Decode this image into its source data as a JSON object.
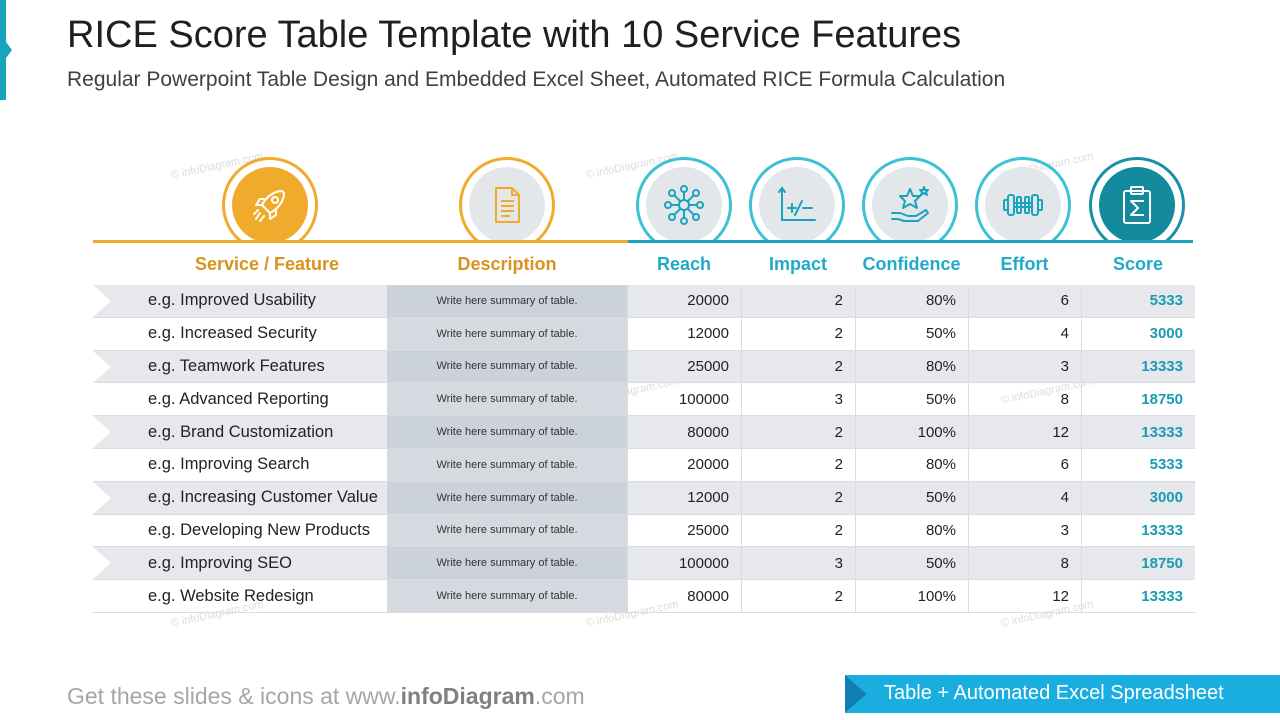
{
  "header": {
    "title": "RICE Score Table Template with 10 Service Features",
    "subtitle": "Regular Powerpoint Table Design and Embedded Excel Sheet, Automated RICE Formula Calculation"
  },
  "watermark": "© infoDiagram.com",
  "columns": {
    "feature": "Service / Feature",
    "description": "Description",
    "reach": "Reach",
    "impact": "Impact",
    "confidence": "Confidence",
    "effort": "Effort",
    "score": "Score"
  },
  "icons": {
    "feature": "rocket-icon",
    "description": "document-icon",
    "reach": "network-icon",
    "impact": "graph-plus-minus-icon",
    "confidence": "hand-star-icon",
    "effort": "dumbbell-icon",
    "score": "clipboard-sigma-icon"
  },
  "colors": {
    "orange": "#f1ab2c",
    "teal": "#1aa3bd",
    "score_text": "#1a9bb5",
    "banner": "#1aaee0"
  },
  "rows": [
    {
      "feature": "e.g. Improved Usability",
      "description": "Write here summary of table.",
      "reach": "20000",
      "impact": "2",
      "confidence": "80%",
      "effort": "6",
      "score": "5333"
    },
    {
      "feature": "e.g. Increased Security",
      "description": "Write here summary of table.",
      "reach": "12000",
      "impact": "2",
      "confidence": "50%",
      "effort": "4",
      "score": "3000"
    },
    {
      "feature": "e.g. Teamwork Features",
      "description": "Write here summary of table.",
      "reach": "25000",
      "impact": "2",
      "confidence": "80%",
      "effort": "3",
      "score": "13333"
    },
    {
      "feature": "e.g. Advanced Reporting",
      "description": "Write here summary of table.",
      "reach": "100000",
      "impact": "3",
      "confidence": "50%",
      "effort": "8",
      "score": "18750"
    },
    {
      "feature": "e.g. Brand Customization",
      "description": "Write here summary of table.",
      "reach": "80000",
      "impact": "2",
      "confidence": "100%",
      "effort": "12",
      "score": "13333"
    },
    {
      "feature": "e.g. Improving Search",
      "description": "Write here summary of table.",
      "reach": "20000",
      "impact": "2",
      "confidence": "80%",
      "effort": "6",
      "score": "5333"
    },
    {
      "feature": "e.g. Increasing Customer Value",
      "description": "Write here summary of table.",
      "reach": "12000",
      "impact": "2",
      "confidence": "50%",
      "effort": "4",
      "score": "3000"
    },
    {
      "feature": "e.g. Developing New Products",
      "description": "Write here summary of table.",
      "reach": "25000",
      "impact": "2",
      "confidence": "80%",
      "effort": "3",
      "score": "13333"
    },
    {
      "feature": "e.g. Improving SEO",
      "description": "Write here summary of table.",
      "reach": "100000",
      "impact": "3",
      "confidence": "50%",
      "effort": "8",
      "score": "18750"
    },
    {
      "feature": "e.g. Website Redesign",
      "description": "Write here summary of table.",
      "reach": "80000",
      "impact": "2",
      "confidence": "100%",
      "effort": "12",
      "score": "13333"
    }
  ],
  "footer": {
    "prefix": "Get these slides & icons at www.",
    "brand": "infoDiagram",
    "suffix": ".com",
    "banner": "Table + Automated Excel Spreadsheet"
  }
}
